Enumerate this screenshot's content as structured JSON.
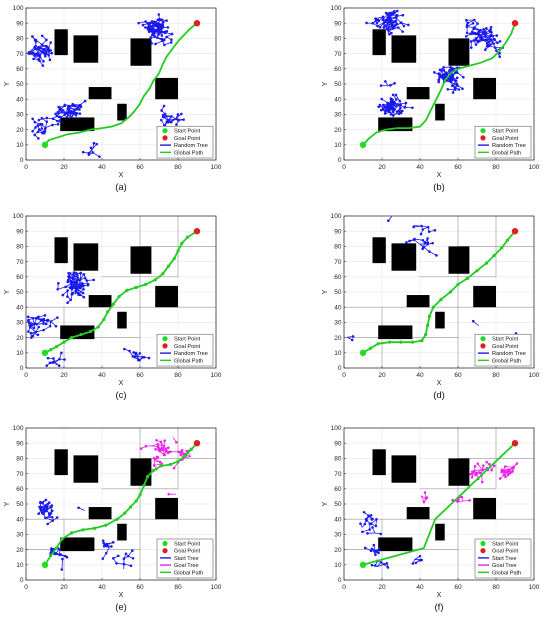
{
  "figure": {
    "panel_labels": [
      "(a)",
      "(b)",
      "(c)",
      "(d)",
      "(e)",
      "(f)"
    ]
  },
  "colors": {
    "start": "#22dd22",
    "goal": "#e02020",
    "random_tree": "#1a1aee",
    "start_tree": "#1a1aee",
    "goal_tree": "#ee22ee",
    "global_path": "#22cc22",
    "obstacle": "#000000",
    "grid": "#e6e6e6",
    "axis": "#333333"
  },
  "chart_data": [
    {
      "type": "scatter",
      "panel": "(a)",
      "xlabel": "X",
      "ylabel": "Y",
      "xlim": [
        0,
        100
      ],
      "ylim": [
        0,
        100
      ],
      "xticks": [
        0,
        20,
        40,
        60,
        80,
        100
      ],
      "yticks": [
        0,
        10,
        20,
        30,
        40,
        50,
        60,
        70,
        80,
        90,
        100
      ],
      "grid": true,
      "obstacles": [
        [
          15,
          69,
          7,
          17
        ],
        [
          25,
          64,
          13,
          18
        ],
        [
          55,
          62,
          11,
          18
        ],
        [
          68,
          40,
          12,
          14
        ],
        [
          33,
          40,
          12,
          8
        ],
        [
          48,
          26,
          5,
          11
        ],
        [
          18,
          19,
          18,
          9
        ]
      ],
      "start": [
        10,
        10
      ],
      "goal": [
        90,
        90
      ],
      "legend": {
        "position": "bottom-right",
        "entries": [
          "Start Point",
          "Goal Point",
          "Random Tree",
          "Global Path"
        ]
      },
      "trees": [
        {
          "name": "Random Tree",
          "density": 230,
          "seed": 11,
          "color": "random_tree"
        }
      ],
      "path": [
        [
          10,
          10
        ],
        [
          12,
          13
        ],
        [
          17,
          15
        ],
        [
          22,
          17
        ],
        [
          28,
          18
        ],
        [
          34,
          20
        ],
        [
          40,
          21
        ],
        [
          45,
          22
        ],
        [
          50,
          24
        ],
        [
          54,
          28
        ],
        [
          57,
          32
        ],
        [
          60,
          37
        ],
        [
          62,
          42
        ],
        [
          65,
          47
        ],
        [
          67,
          52
        ],
        [
          70,
          57
        ],
        [
          72,
          63
        ],
        [
          74,
          68
        ],
        [
          77,
          73
        ],
        [
          80,
          78
        ],
        [
          83,
          82
        ],
        [
          86,
          86
        ],
        [
          90,
          90
        ]
      ],
      "path_markers": false
    },
    {
      "type": "scatter",
      "panel": "(b)",
      "xlabel": "X",
      "ylabel": "Y",
      "xlim": [
        0,
        100
      ],
      "ylim": [
        0,
        100
      ],
      "xticks": [
        0,
        20,
        40,
        60,
        80,
        100
      ],
      "yticks": [
        0,
        10,
        20,
        30,
        40,
        50,
        60,
        70,
        80,
        90,
        100
      ],
      "grid": true,
      "obstacles": [
        [
          15,
          69,
          7,
          17
        ],
        [
          25,
          64,
          13,
          18
        ],
        [
          55,
          62,
          11,
          18
        ],
        [
          68,
          40,
          12,
          14
        ],
        [
          33,
          40,
          12,
          8
        ],
        [
          48,
          26,
          5,
          11
        ],
        [
          18,
          19,
          18,
          9
        ]
      ],
      "start": [
        10,
        10
      ],
      "goal": [
        90,
        90
      ],
      "legend": {
        "position": "bottom-right",
        "entries": [
          "Start Point",
          "Goal Point",
          "Random Tree",
          "Global Path"
        ]
      },
      "trees": [
        {
          "name": "Random Tree",
          "density": 260,
          "seed": 23,
          "color": "random_tree"
        }
      ],
      "path": [
        [
          10,
          10
        ],
        [
          13,
          14
        ],
        [
          17,
          18
        ],
        [
          22,
          20
        ],
        [
          28,
          21
        ],
        [
          34,
          21
        ],
        [
          40,
          22
        ],
        [
          43,
          26
        ],
        [
          45,
          31
        ],
        [
          47,
          36
        ],
        [
          49,
          41
        ],
        [
          51,
          46
        ],
        [
          53,
          52
        ],
        [
          56,
          57
        ],
        [
          60,
          60
        ],
        [
          66,
          62
        ],
        [
          72,
          64
        ],
        [
          78,
          67
        ],
        [
          82,
          72
        ],
        [
          85,
          77
        ],
        [
          88,
          83
        ],
        [
          90,
          90
        ]
      ],
      "path_markers": false
    },
    {
      "type": "scatter",
      "panel": "(c)",
      "xlabel": "X",
      "ylabel": "Y",
      "xlim": [
        0,
        100
      ],
      "ylim": [
        0,
        100
      ],
      "xticks": [
        0,
        20,
        40,
        60,
        80,
        100
      ],
      "yticks": [
        0,
        10,
        20,
        30,
        40,
        50,
        60,
        70,
        80,
        90,
        100
      ],
      "grid": true,
      "sector_lines": true,
      "obstacles": [
        [
          15,
          69,
          7,
          17
        ],
        [
          25,
          64,
          13,
          18
        ],
        [
          55,
          62,
          11,
          18
        ],
        [
          68,
          40,
          12,
          14
        ],
        [
          33,
          40,
          12,
          8
        ],
        [
          48,
          26,
          5,
          11
        ],
        [
          18,
          19,
          18,
          9
        ]
      ],
      "start": [
        10,
        10
      ],
      "goal": [
        90,
        90
      ],
      "legend": {
        "position": "bottom-right",
        "entries": [
          "Start Point",
          "Goal Point",
          "Random Tree",
          "Global Path"
        ]
      },
      "trees": [
        {
          "name": "Random Tree",
          "density": 130,
          "seed": 37,
          "color": "random_tree"
        }
      ],
      "path": [
        [
          10,
          10
        ],
        [
          13,
          12
        ],
        [
          16,
          14
        ],
        [
          20,
          17
        ],
        [
          24,
          20
        ],
        [
          29,
          22
        ],
        [
          34,
          24
        ],
        [
          38,
          27
        ],
        [
          41,
          32
        ],
        [
          43,
          37
        ],
        [
          46,
          42
        ],
        [
          49,
          47
        ],
        [
          53,
          51
        ],
        [
          58,
          53
        ],
        [
          63,
          55
        ],
        [
          68,
          58
        ],
        [
          72,
          62
        ],
        [
          75,
          67
        ],
        [
          78,
          72
        ],
        [
          80,
          77
        ],
        [
          82,
          82
        ],
        [
          85,
          86
        ],
        [
          90,
          90
        ]
      ],
      "path_markers": true
    },
    {
      "type": "scatter",
      "panel": "(d)",
      "xlabel": "X",
      "ylabel": "Y",
      "xlim": [
        0,
        100
      ],
      "ylim": [
        0,
        100
      ],
      "xticks": [
        0,
        20,
        40,
        60,
        80,
        100
      ],
      "yticks": [
        0,
        10,
        20,
        30,
        40,
        50,
        60,
        70,
        80,
        90,
        100
      ],
      "grid": true,
      "sector_lines": true,
      "obstacles": [
        [
          15,
          69,
          7,
          17
        ],
        [
          25,
          64,
          13,
          18
        ],
        [
          55,
          62,
          11,
          18
        ],
        [
          68,
          40,
          12,
          14
        ],
        [
          33,
          40,
          12,
          8
        ],
        [
          48,
          26,
          5,
          11
        ],
        [
          18,
          19,
          18,
          9
        ]
      ],
      "start": [
        10,
        10
      ],
      "goal": [
        90,
        90
      ],
      "legend": {
        "position": "bottom-right",
        "entries": [
          "Start Point",
          "Goal Point",
          "Random Tree",
          "Global Path"
        ]
      },
      "trees": [
        {
          "name": "Random Tree",
          "density": 28,
          "seed": 41,
          "color": "random_tree"
        }
      ],
      "path": [
        [
          10,
          10
        ],
        [
          14,
          13
        ],
        [
          18,
          16
        ],
        [
          24,
          17
        ],
        [
          30,
          17
        ],
        [
          36,
          17
        ],
        [
          41,
          18
        ],
        [
          43,
          22
        ],
        [
          44,
          28
        ],
        [
          45,
          34
        ],
        [
          47,
          40
        ],
        [
          51,
          45
        ],
        [
          56,
          50
        ],
        [
          60,
          55
        ],
        [
          65,
          59
        ],
        [
          70,
          64
        ],
        [
          75,
          69
        ],
        [
          79,
          74
        ],
        [
          83,
          79
        ],
        [
          86,
          84
        ],
        [
          90,
          90
        ]
      ],
      "path_markers": true
    },
    {
      "type": "scatter",
      "panel": "(e)",
      "xlabel": "X",
      "ylabel": "Y",
      "xlim": [
        0,
        100
      ],
      "ylim": [
        0,
        100
      ],
      "xticks": [
        0,
        20,
        40,
        60,
        80,
        100
      ],
      "yticks": [
        0,
        10,
        20,
        30,
        40,
        50,
        60,
        70,
        80,
        90,
        100
      ],
      "grid": true,
      "sector_lines": true,
      "obstacles": [
        [
          15,
          69,
          7,
          17
        ],
        [
          25,
          64,
          13,
          18
        ],
        [
          55,
          62,
          11,
          18
        ],
        [
          68,
          40,
          12,
          14
        ],
        [
          33,
          40,
          12,
          8
        ],
        [
          48,
          26,
          5,
          11
        ],
        [
          18,
          19,
          18,
          9
        ]
      ],
      "start": [
        10,
        10
      ],
      "goal": [
        90,
        90
      ],
      "legend": {
        "position": "bottom-right",
        "entries": [
          "Start Point",
          "Goal Point",
          "Start Tree",
          "Goal Tree",
          "Global Path"
        ]
      },
      "trees": [
        {
          "name": "Start Tree",
          "density": 70,
          "seed": 53,
          "color": "start_tree",
          "region": [
            5,
            5,
            60,
            70
          ]
        },
        {
          "name": "Goal Tree",
          "density": 45,
          "seed": 59,
          "color": "goal_tree",
          "region": [
            58,
            50,
            95,
            95
          ]
        }
      ],
      "path": [
        [
          10,
          10
        ],
        [
          13,
          16
        ],
        [
          16,
          21
        ],
        [
          19,
          27
        ],
        [
          24,
          31
        ],
        [
          30,
          33
        ],
        [
          36,
          34
        ],
        [
          42,
          36
        ],
        [
          48,
          40
        ],
        [
          52,
          44
        ],
        [
          55,
          48
        ],
        [
          58,
          52
        ],
        [
          60,
          56
        ],
        [
          62,
          62
        ],
        [
          64,
          68
        ],
        [
          67,
          72
        ],
        [
          71,
          75
        ],
        [
          76,
          76
        ],
        [
          80,
          78
        ],
        [
          84,
          82
        ],
        [
          87,
          86
        ],
        [
          90,
          90
        ]
      ],
      "path_markers": true
    },
    {
      "type": "scatter",
      "panel": "(f)",
      "xlabel": "X",
      "ylabel": "Y",
      "xlim": [
        0,
        100
      ],
      "ylim": [
        0,
        100
      ],
      "xticks": [
        0,
        20,
        40,
        60,
        80,
        100
      ],
      "yticks": [
        0,
        10,
        20,
        30,
        40,
        50,
        60,
        70,
        80,
        90,
        100
      ],
      "grid": true,
      "sector_lines": true,
      "obstacles": [
        [
          15,
          69,
          7,
          17
        ],
        [
          25,
          64,
          13,
          18
        ],
        [
          55,
          62,
          11,
          18
        ],
        [
          68,
          40,
          12,
          14
        ],
        [
          33,
          40,
          12,
          8
        ],
        [
          48,
          26,
          5,
          11
        ],
        [
          18,
          19,
          18,
          9
        ]
      ],
      "start": [
        10,
        10
      ],
      "goal": [
        90,
        90
      ],
      "legend": {
        "position": "bottom-right",
        "entries": [
          "Start Point",
          "Goal Point",
          "Start Tree",
          "Goal Tree",
          "Global Path"
        ]
      },
      "trees": [
        {
          "name": "Start Tree",
          "density": 40,
          "seed": 67,
          "color": "start_tree",
          "region": [
            8,
            8,
            50,
            45
          ]
        },
        {
          "name": "Goal Tree",
          "density": 50,
          "seed": 71,
          "color": "goal_tree",
          "region": [
            40,
            35,
            92,
            92
          ]
        }
      ],
      "path": [
        [
          10,
          10
        ],
        [
          42,
          21
        ],
        [
          48,
          40
        ],
        [
          90,
          90
        ]
      ],
      "path_markers": false
    }
  ]
}
